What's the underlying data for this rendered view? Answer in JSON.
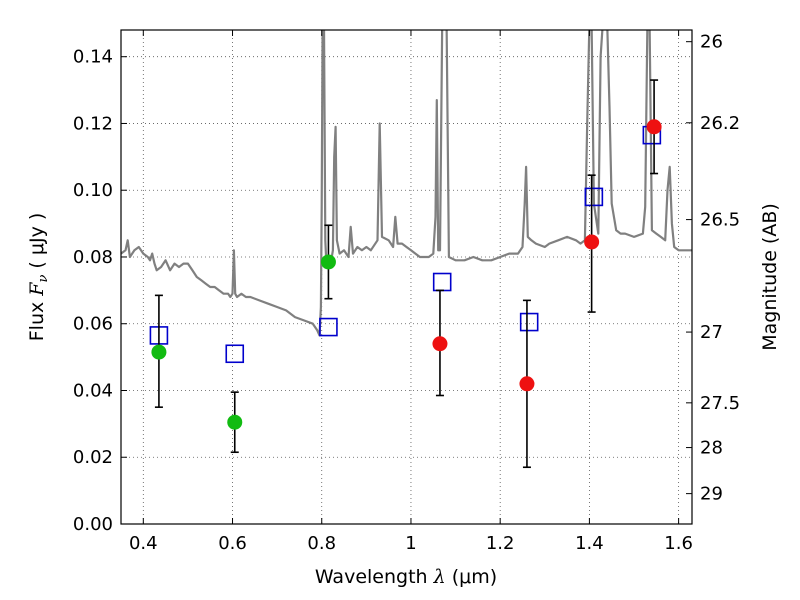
{
  "chart_data": {
    "type": "scatter",
    "xlabel": "Wavelength",
    "xlabel_symbol": "λ",
    "xlabel_unit": "(μm)",
    "ylabel": "Flux",
    "ylabel_symbol": "F",
    "ylabel_subscript": "ν",
    "ylabel_unit": "( μJy )",
    "y2label": "Magnitude (AB)",
    "xlim": [
      0.35,
      1.63
    ],
    "ylim": [
      0.0,
      0.148
    ],
    "grid": true,
    "x_ticks": [
      0.4,
      0.6,
      0.8,
      1.0,
      1.2,
      1.4,
      1.6
    ],
    "x_tick_labels": [
      "0.4",
      "0.6",
      "0.8",
      "1",
      "1.2",
      "1.4",
      "1.6"
    ],
    "y_ticks": [
      0.0,
      0.02,
      0.04,
      0.06,
      0.08,
      0.1,
      0.12,
      0.14
    ],
    "y_tick_labels": [
      "0.00",
      "0.02",
      "0.04",
      "0.06",
      "0.08",
      "0.10",
      "0.12",
      "0.14"
    ],
    "y2_ticks": [
      {
        "label": "26",
        "flux": 0.1445
      },
      {
        "label": "26.2",
        "flux": 0.1202
      },
      {
        "label": "26.5",
        "flux": 0.0912
      },
      {
        "label": "27",
        "flux": 0.0575
      },
      {
        "label": "27.5",
        "flux": 0.0363
      },
      {
        "label": "28",
        "flux": 0.0229
      },
      {
        "label": "29",
        "flux": 0.0091
      }
    ],
    "series": [
      {
        "marker": "open-square",
        "color": "#0000cc",
        "points": [
          {
            "x": 0.435,
            "y": 0.0565
          },
          {
            "x": 0.605,
            "y": 0.051
          },
          {
            "x": 0.815,
            "y": 0.059
          },
          {
            "x": 1.07,
            "y": 0.0725
          },
          {
            "x": 1.265,
            "y": 0.0605
          },
          {
            "x": 1.41,
            "y": 0.098
          },
          {
            "x": 1.54,
            "y": 0.1165
          }
        ]
      },
      {
        "marker": "filled-circle",
        "color": "#11bb11",
        "points": [
          {
            "x": 0.435,
            "y": 0.0515,
            "err_low": 0.035,
            "err_high": 0.0685
          },
          {
            "x": 0.605,
            "y": 0.0305,
            "err_low": 0.0215,
            "err_high": 0.0395
          },
          {
            "x": 0.815,
            "y": 0.0785,
            "err_low": 0.0675,
            "err_high": 0.0895
          }
        ]
      },
      {
        "marker": "filled-circle",
        "color": "#ee1111",
        "points": [
          {
            "x": 1.065,
            "y": 0.054,
            "err_low": 0.0385,
            "err_high": 0.07
          },
          {
            "x": 1.26,
            "y": 0.042,
            "err_low": 0.017,
            "err_high": 0.067
          },
          {
            "x": 1.405,
            "y": 0.0845,
            "err_low": 0.0635,
            "err_high": 0.1045
          },
          {
            "x": 1.545,
            "y": 0.119,
            "err_low": 0.105,
            "err_high": 0.133
          }
        ]
      }
    ],
    "spectrum": {
      "color": "#808080",
      "points": [
        [
          0.35,
          0.081
        ],
        [
          0.36,
          0.082
        ],
        [
          0.365,
          0.085
        ],
        [
          0.37,
          0.08
        ],
        [
          0.38,
          0.082
        ],
        [
          0.39,
          0.083
        ],
        [
          0.4,
          0.081
        ],
        [
          0.41,
          0.08
        ],
        [
          0.415,
          0.079
        ],
        [
          0.42,
          0.081
        ],
        [
          0.425,
          0.078
        ],
        [
          0.43,
          0.076
        ],
        [
          0.44,
          0.077
        ],
        [
          0.45,
          0.079
        ],
        [
          0.46,
          0.076
        ],
        [
          0.47,
          0.078
        ],
        [
          0.48,
          0.077
        ],
        [
          0.49,
          0.078
        ],
        [
          0.5,
          0.078
        ],
        [
          0.51,
          0.076
        ],
        [
          0.52,
          0.074
        ],
        [
          0.53,
          0.073
        ],
        [
          0.54,
          0.072
        ],
        [
          0.55,
          0.071
        ],
        [
          0.56,
          0.071
        ],
        [
          0.57,
          0.07
        ],
        [
          0.58,
          0.069
        ],
        [
          0.59,
          0.069
        ],
        [
          0.595,
          0.068
        ],
        [
          0.6,
          0.069
        ],
        [
          0.603,
          0.082
        ],
        [
          0.606,
          0.069
        ],
        [
          0.61,
          0.068
        ],
        [
          0.62,
          0.069
        ],
        [
          0.63,
          0.068
        ],
        [
          0.64,
          0.068
        ],
        [
          0.66,
          0.067
        ],
        [
          0.68,
          0.066
        ],
        [
          0.7,
          0.065
        ],
        [
          0.72,
          0.064
        ],
        [
          0.74,
          0.062
        ],
        [
          0.76,
          0.061
        ],
        [
          0.78,
          0.06
        ],
        [
          0.79,
          0.058
        ],
        [
          0.795,
          0.0565
        ],
        [
          0.798,
          0.065
        ],
        [
          0.8,
          0.095
        ],
        [
          0.802,
          0.15
        ],
        [
          0.805,
          0.15
        ],
        [
          0.808,
          0.085
        ],
        [
          0.81,
          0.079
        ],
        [
          0.82,
          0.078
        ],
        [
          0.825,
          0.082
        ],
        [
          0.828,
          0.11
        ],
        [
          0.831,
          0.119
        ],
        [
          0.834,
          0.085
        ],
        [
          0.84,
          0.081
        ],
        [
          0.85,
          0.082
        ],
        [
          0.86,
          0.08
        ],
        [
          0.865,
          0.089
        ],
        [
          0.87,
          0.081
        ],
        [
          0.88,
          0.083
        ],
        [
          0.89,
          0.082
        ],
        [
          0.9,
          0.083
        ],
        [
          0.91,
          0.082
        ],
        [
          0.925,
          0.085
        ],
        [
          0.93,
          0.12
        ],
        [
          0.935,
          0.086
        ],
        [
          0.95,
          0.085
        ],
        [
          0.96,
          0.083
        ],
        [
          0.965,
          0.092
        ],
        [
          0.97,
          0.084
        ],
        [
          0.98,
          0.084
        ],
        [
          0.99,
          0.083
        ],
        [
          1.0,
          0.082
        ],
        [
          1.01,
          0.081
        ],
        [
          1.02,
          0.08
        ],
        [
          1.04,
          0.08
        ],
        [
          1.05,
          0.081
        ],
        [
          1.055,
          0.092
        ],
        [
          1.058,
          0.127
        ],
        [
          1.061,
          0.082
        ],
        [
          1.065,
          0.082
        ],
        [
          1.07,
          0.15
        ],
        [
          1.08,
          0.15
        ],
        [
          1.085,
          0.08
        ],
        [
          1.1,
          0.079
        ],
        [
          1.12,
          0.079
        ],
        [
          1.14,
          0.08
        ],
        [
          1.16,
          0.079
        ],
        [
          1.18,
          0.079
        ],
        [
          1.2,
          0.08
        ],
        [
          1.22,
          0.081
        ],
        [
          1.24,
          0.081
        ],
        [
          1.25,
          0.083
        ],
        [
          1.255,
          0.096
        ],
        [
          1.258,
          0.107
        ],
        [
          1.262,
          0.086
        ],
        [
          1.27,
          0.085
        ],
        [
          1.28,
          0.084
        ],
        [
          1.3,
          0.083
        ],
        [
          1.31,
          0.084
        ],
        [
          1.33,
          0.085
        ],
        [
          1.35,
          0.086
        ],
        [
          1.37,
          0.085
        ],
        [
          1.38,
          0.084
        ],
        [
          1.39,
          0.085
        ],
        [
          1.395,
          0.12
        ],
        [
          1.4,
          0.15
        ],
        [
          1.405,
          0.15
        ],
        [
          1.41,
          0.096
        ],
        [
          1.42,
          0.087
        ],
        [
          1.425,
          0.14
        ],
        [
          1.43,
          0.15
        ],
        [
          1.44,
          0.15
        ],
        [
          1.445,
          0.125
        ],
        [
          1.45,
          0.096
        ],
        [
          1.46,
          0.088
        ],
        [
          1.47,
          0.087
        ],
        [
          1.48,
          0.087
        ],
        [
          1.5,
          0.086
        ],
        [
          1.52,
          0.087
        ],
        [
          1.525,
          0.095
        ],
        [
          1.53,
          0.15
        ],
        [
          1.535,
          0.15
        ],
        [
          1.54,
          0.088
        ],
        [
          1.55,
          0.087
        ],
        [
          1.56,
          0.086
        ],
        [
          1.57,
          0.085
        ],
        [
          1.575,
          0.1
        ],
        [
          1.58,
          0.107
        ],
        [
          1.585,
          0.09
        ],
        [
          1.59,
          0.083
        ],
        [
          1.6,
          0.082
        ],
        [
          1.61,
          0.082
        ],
        [
          1.62,
          0.082
        ],
        [
          1.63,
          0.082
        ]
      ]
    }
  }
}
